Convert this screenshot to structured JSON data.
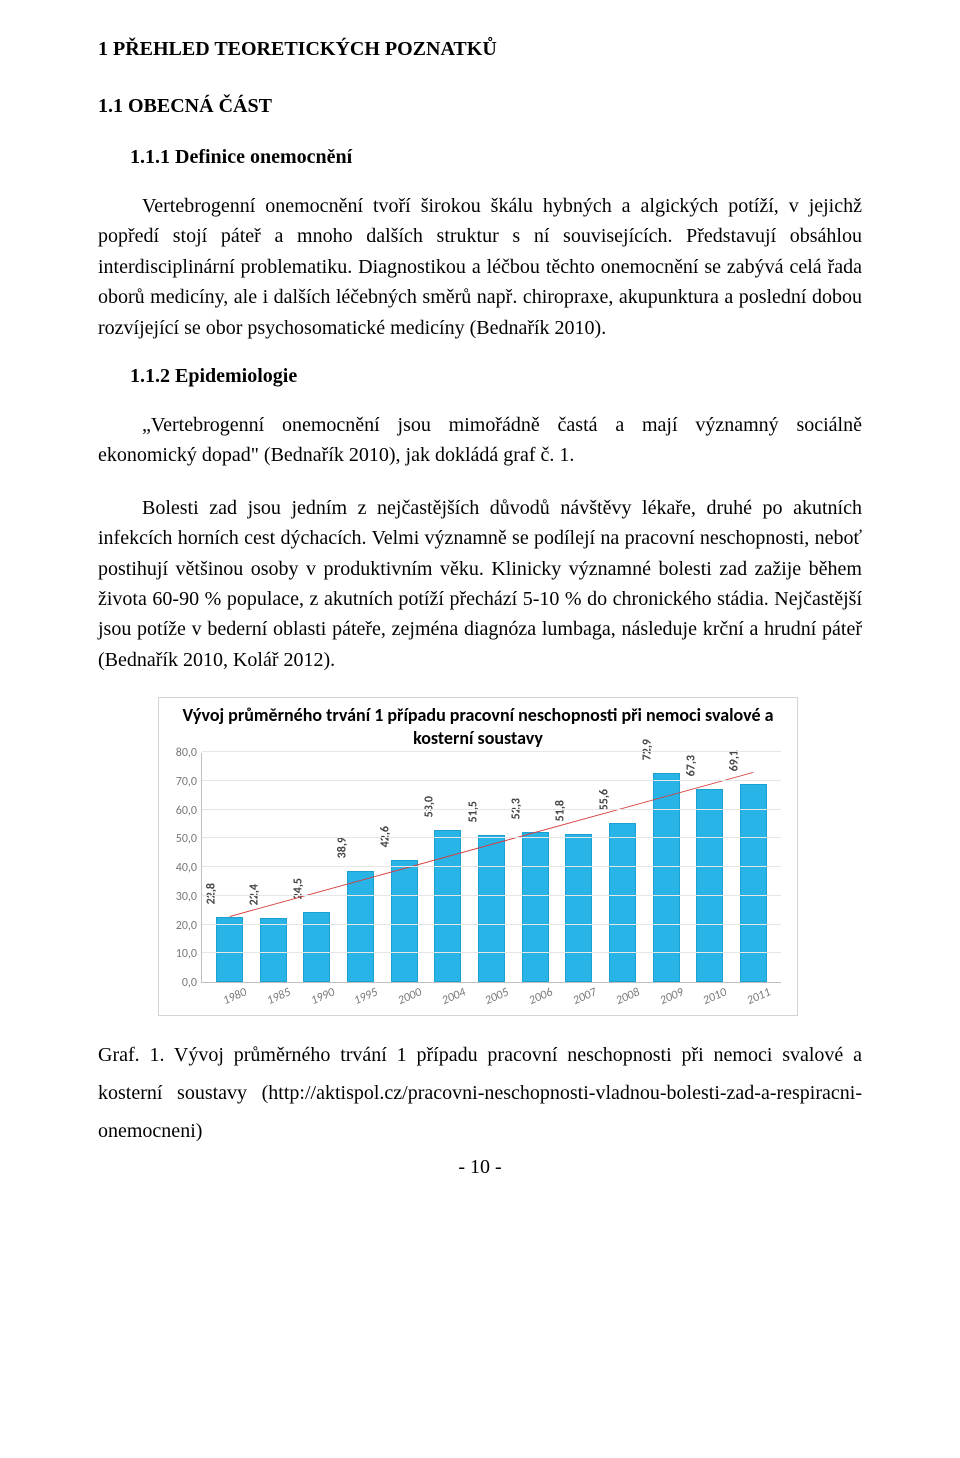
{
  "heading1": "1   PŘEHLED TEORETICKÝCH POZNATKŮ",
  "heading2": "1.1 OBECNÁ ČÁST",
  "heading3a": "1.1.1 Definice onemocnění",
  "p1": "Vertebrogenní onemocnění tvoří širokou škálu hybných a algických potíží, v jejichž popředí stojí páteř a mnoho dalších struktur s ní souvisejících. Představují obsáhlou interdisciplinární problematiku. Diagnostikou a léčbou těchto onemocnění se zabývá celá řada oborů medicíny, ale i dalších léčebných směrů např. chiropraxe, akupunktura a poslední dobou rozvíjející se obor psychosomatické medicíny (Bednařík 2010).",
  "heading3b": "1.1.2 Epidemiologie",
  "p2": "„Vertebrogenní onemocnění jsou mimořádně častá a mají významný sociálně ekonomický dopad\" (Bednařík 2010), jak dokládá graf č. 1.",
  "p3": "Bolesti zad jsou jedním z nejčastějších důvodů návštěvy lékaře, druhé po akutních infekcích horních cest dýchacích. Velmi významně se podílejí na pracovní neschopnosti, neboť postihují většinou osoby v produktivním věku. Klinicky významné bolesti zad zažije během života 60-90 % populace, z akutních potíží přechází 5-10 % do chronického stádia. Nejčastější jsou potíže v bederní oblasti páteře, zejména diagnóza lumbaga, následuje krční a hrudní páteř (Bednařík 2010, Kolář 2012).",
  "chart": {
    "title": "Vývoj průměrného trvání 1 případu pracovní neschopnosti při nemoci svalové a kosterní soustavy",
    "type": "bar",
    "categories": [
      "1980",
      "1985",
      "1990",
      "1995",
      "2000",
      "2004",
      "2005",
      "2006",
      "2007",
      "2008",
      "2009",
      "2010",
      "2011"
    ],
    "values": [
      22.8,
      22.4,
      24.5,
      38.9,
      42.6,
      53.0,
      51.5,
      52.3,
      51.8,
      55.6,
      72.9,
      67.3,
      69.1
    ],
    "labels": [
      "22,8",
      "22,4",
      "24,5",
      "38,9",
      "42,6",
      "53,0",
      "51,5",
      "52,3",
      "51,8",
      "55,6",
      "72,9",
      "67,3",
      "69,1"
    ],
    "bar_color": "#29b4e8",
    "bar_border": "#1c9fd1",
    "trend_color": "#d93a3a",
    "ylim": [
      0,
      80
    ],
    "ytick_step": 10,
    "yticks": [
      "0,0",
      "10,0",
      "20,0",
      "30,0",
      "40,0",
      "50,0",
      "60,0",
      "70,0",
      "80,0"
    ],
    "grid_color": "#e6e6e6",
    "axis_color": "#bfbfbf",
    "background": "#ffffff",
    "title_fontsize": 18,
    "tick_fontsize": 12
  },
  "caption": "Graf. 1. Vývoj průměrného trvání 1 případu pracovní neschopnosti při nemoci svalové a kosterní soustavy (http://aktispol.cz/pracovni-neschopnosti-vladnou-bolesti-zad-a-respiracni-onemocneni)",
  "pagenum": "- 10 -"
}
